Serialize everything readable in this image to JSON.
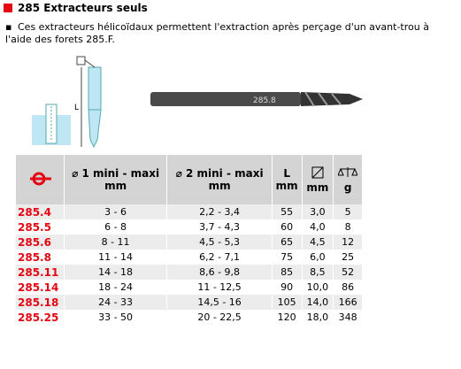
{
  "header": {
    "title": "285 Extracteurs seuls"
  },
  "description": "Ces extracteurs hélicoïdaux permettent l'extraction après perçage d'un avant-trou à l'aide des forets 285.F.",
  "drawing": {
    "length_label": "L",
    "tool_label": "285.8"
  },
  "table": {
    "columns": [
      "⌀ 1 mini - maxi\nmm",
      "⌀ 2 mini - maxi\nmm",
      "L\nmm",
      "mm",
      "g"
    ],
    "rows": [
      [
        "285.4",
        "3 - 6",
        "2,2 - 3,4",
        "55",
        "3,0",
        "5"
      ],
      [
        "285.5",
        "6 - 8",
        "3,7 - 4,3",
        "60",
        "4,0",
        "8"
      ],
      [
        "285.6",
        "8 - 11",
        "4,5 - 5,3",
        "65",
        "4,5",
        "12"
      ],
      [
        "285.8",
        "11 - 14",
        "6,2 - 7,1",
        "75",
        "6,0",
        "25"
      ],
      [
        "285.11",
        "14 - 18",
        "8,6 - 9,8",
        "85",
        "8,5",
        "52"
      ],
      [
        "285.14",
        "18 - 24",
        "11 - 12,5",
        "90",
        "10,0",
        "86"
      ],
      [
        "285.18",
        "24 - 33",
        "14,5 - 16",
        "105",
        "14,0",
        "166"
      ],
      [
        "285.25",
        "33 - 50",
        "20 - 22,5",
        "120",
        "18,0",
        "348"
      ]
    ]
  }
}
